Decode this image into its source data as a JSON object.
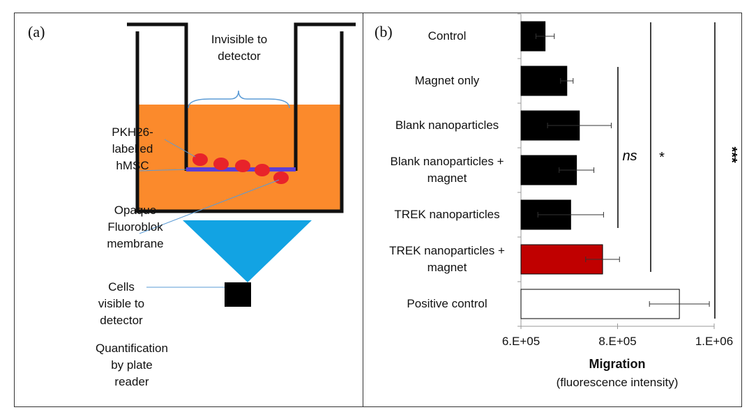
{
  "diagram": {
    "panel_label": "(a)",
    "labels": [
      "Invisible to detector",
      "PKH26-labelled hMSC",
      "Opaque Fluoroblok membrane",
      "Cells visible to detector",
      "Quantification by plate reader"
    ]
  },
  "chart_data": {
    "type": "hbar",
    "panel_label": "(b)",
    "categories": [
      "Control",
      "Magnet only",
      "Blank nanoparticles",
      "Blank nanoparticles + magnet",
      "TREK nanoparticles",
      "TREK nanoparticles + magnet",
      "Positive control"
    ],
    "values": [
      650000,
      695000,
      721000,
      715000,
      703000,
      769000,
      928000
    ],
    "error": [
      19000,
      13000,
      66000,
      36000,
      68000,
      35000,
      62000
    ],
    "colors": [
      "#000000",
      "#000000",
      "#000000",
      "#000000",
      "#000000",
      "#c00000",
      "#ffffff"
    ],
    "xlim": [
      600000,
      1000000
    ],
    "xticks": [
      {
        "value": 600000,
        "label": "6.E+05"
      },
      {
        "value": 800000,
        "label": "8.E+05"
      },
      {
        "value": 1000000,
        "label": "1.E+06"
      }
    ],
    "xlabel": "Migration",
    "xlabel_note": "(fluorescence intensity)",
    "annotations": [
      "ns",
      "*",
      "***"
    ]
  }
}
